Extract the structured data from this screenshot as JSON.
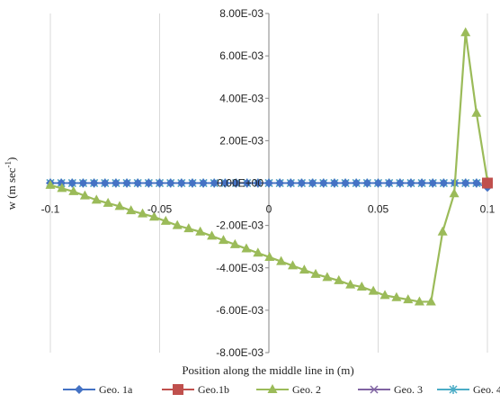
{
  "chart_data": {
    "type": "line",
    "title": "",
    "xlabel": "Position along the middle line in (m)",
    "ylabel": "w (m sec",
    "ylabel_sup": "-1",
    "ylabel_close": ")",
    "xlim": [
      -0.1,
      0.1
    ],
    "ylim": [
      -0.008,
      0.008
    ],
    "x_ticks": [
      -0.1,
      -0.05,
      0,
      0.05,
      0.1
    ],
    "x_tick_labels": [
      "-0.1",
      "-0.05",
      "0",
      "0.05",
      "0.1"
    ],
    "y_ticks": [
      0.008,
      0.006,
      0.004,
      0.002,
      0,
      -0.002,
      -0.004,
      -0.006,
      -0.008
    ],
    "y_tick_labels": [
      "8.00E-03",
      "6.00E-03",
      "4.00E-03",
      "2.00E-03",
      "0.00E+00",
      "-2.00E-03",
      "-4.00E-03",
      "-6.00E-03",
      "-8.00E-03"
    ],
    "grid": "vertical gridlines",
    "legend_position": "bottom",
    "series": [
      {
        "name": "Geo. 1a",
        "color": "#4472c4",
        "marker": "diamond",
        "x": [
          -0.1,
          -0.095,
          -0.09,
          -0.085,
          -0.08,
          -0.075,
          -0.07,
          -0.065,
          -0.06,
          -0.055,
          -0.05,
          -0.045,
          -0.04,
          -0.035,
          -0.03,
          -0.025,
          -0.02,
          -0.015,
          -0.01,
          -0.005,
          0,
          0.005,
          0.01,
          0.015,
          0.02,
          0.025,
          0.03,
          0.035,
          0.04,
          0.045,
          0.05,
          0.055,
          0.06,
          0.065,
          0.07,
          0.075,
          0.08,
          0.085,
          0.09,
          0.095,
          0.1
        ],
        "y": [
          0,
          0,
          0,
          0,
          0,
          0,
          0,
          0,
          0,
          0,
          0,
          0,
          0,
          0,
          0,
          0,
          0,
          0,
          0,
          0,
          0,
          0,
          0,
          0,
          0,
          0,
          0,
          0,
          0,
          0,
          0,
          0,
          0,
          0,
          0,
          0,
          0,
          0,
          0,
          0,
          -0.0002
        ]
      },
      {
        "name": "Geo.1b",
        "color": "#c0504d",
        "marker": "square",
        "x": [
          0.1
        ],
        "y": [
          0
        ]
      },
      {
        "name": "Geo. 2",
        "color": "#9bbb59",
        "marker": "triangle",
        "x": [
          -0.1,
          -0.0947,
          -0.0894,
          -0.0842,
          -0.0789,
          -0.0736,
          -0.0683,
          -0.0631,
          -0.0578,
          -0.0525,
          -0.0472,
          -0.0419,
          -0.0367,
          -0.0314,
          -0.0261,
          -0.0208,
          -0.0155,
          -0.0103,
          -0.005,
          0.0003,
          0.0056,
          0.0109,
          0.0162,
          0.0214,
          0.0267,
          0.032,
          0.0373,
          0.0425,
          0.0478,
          0.0531,
          0.0584,
          0.0637,
          0.0689,
          0.0742,
          0.0795,
          0.0848,
          0.09,
          0.095,
          0.1
        ],
        "y": [
          -0.0001,
          -0.00025,
          -0.0004,
          -0.0006,
          -0.0008,
          -0.00095,
          -0.0011,
          -0.0013,
          -0.00145,
          -0.0016,
          -0.0018,
          -0.002,
          -0.00215,
          -0.0023,
          -0.0025,
          -0.0027,
          -0.0029,
          -0.0031,
          -0.0033,
          -0.0035,
          -0.0037,
          -0.0039,
          -0.0041,
          -0.0043,
          -0.00445,
          -0.0046,
          -0.0048,
          -0.0049,
          -0.0051,
          -0.0053,
          -0.0054,
          -0.0055,
          -0.0056,
          -0.0056,
          -0.0023,
          -0.0005,
          0.0071,
          0.0033,
          0.0001
        ]
      },
      {
        "name": "Geo. 3",
        "color": "#8064a2",
        "marker": "x",
        "x": [
          -0.1,
          -0.095,
          -0.09,
          -0.085,
          -0.08,
          -0.075,
          -0.07,
          -0.065,
          -0.06,
          -0.055,
          -0.05,
          -0.045,
          -0.04,
          -0.035,
          -0.03,
          -0.025,
          -0.02,
          -0.015,
          -0.01,
          -0.005,
          0,
          0.005,
          0.01,
          0.015,
          0.02,
          0.025,
          0.03,
          0.035,
          0.04,
          0.045,
          0.05,
          0.055,
          0.06,
          0.065,
          0.07,
          0.075,
          0.08,
          0.085,
          0.09,
          0.095
        ],
        "y": [
          0,
          0,
          0,
          0,
          0,
          0,
          0,
          0,
          0,
          0,
          0,
          0,
          0,
          0,
          0,
          0,
          0,
          0,
          0,
          0,
          0,
          0,
          0,
          0,
          0,
          0,
          0,
          0,
          0,
          0,
          0,
          0,
          0,
          0,
          0,
          0,
          0,
          0,
          0,
          0
        ]
      },
      {
        "name": "Geo. 4",
        "color": "#4bacc6",
        "marker": "star",
        "x": [
          -0.1,
          -0.095,
          -0.09,
          -0.085,
          -0.08,
          -0.075,
          -0.07,
          -0.065,
          -0.06,
          -0.055,
          -0.05,
          -0.045,
          -0.04,
          -0.035,
          -0.03,
          -0.025,
          -0.02,
          -0.015,
          -0.01,
          -0.005,
          0,
          0.005,
          0.01,
          0.015,
          0.02,
          0.025,
          0.03,
          0.035,
          0.04,
          0.045,
          0.05,
          0.055,
          0.06,
          0.065,
          0.07,
          0.075,
          0.08,
          0.085,
          0.09,
          0.095
        ],
        "y": [
          0,
          0,
          0,
          0,
          0,
          0,
          0,
          0,
          0,
          0,
          0,
          0,
          0,
          0,
          0,
          0,
          0,
          0,
          0,
          0,
          0,
          0,
          0,
          0,
          0,
          0,
          0,
          0,
          0,
          0,
          0,
          0,
          0,
          0,
          0,
          0,
          0,
          0,
          0,
          0
        ]
      }
    ]
  }
}
